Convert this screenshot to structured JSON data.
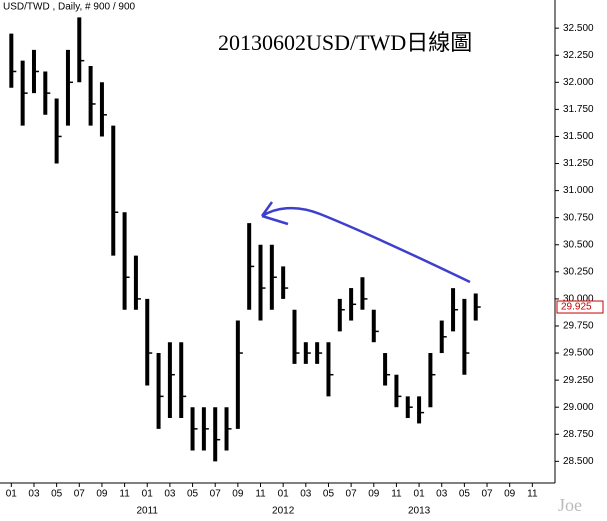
{
  "chart_data": {
    "type": "hilo",
    "header": "USD/TWD , Daily, # 900 / 900",
    "title": "20130602USD/TWD日線圖",
    "watermark": "Joe",
    "color": "#000000",
    "x": [
      "2010-01",
      "2010-02",
      "2010-03",
      "2010-04",
      "2010-05",
      "2010-06",
      "2010-07",
      "2010-08",
      "2010-09",
      "2010-10",
      "2010-11",
      "2010-12",
      "2011-01",
      "2011-02",
      "2011-03",
      "2011-04",
      "2011-05",
      "2011-06",
      "2011-07",
      "2011-08",
      "2011-09",
      "2011-10",
      "2011-11",
      "2011-12",
      "2012-01",
      "2012-02",
      "2012-03",
      "2012-04",
      "2012-05",
      "2012-06",
      "2012-07",
      "2012-08",
      "2012-09",
      "2012-10",
      "2012-11",
      "2012-12",
      "2013-01",
      "2013-02",
      "2013-03",
      "2013-04",
      "2013-05",
      "2013-06"
    ],
    "low": [
      31.95,
      31.6,
      31.9,
      31.7,
      31.25,
      31.6,
      32.0,
      31.6,
      31.5,
      30.4,
      29.9,
      29.9,
      29.2,
      28.8,
      28.9,
      28.9,
      28.6,
      28.6,
      28.5,
      28.6,
      28.8,
      29.9,
      29.8,
      29.9,
      30.0,
      29.4,
      29.4,
      29.4,
      29.1,
      29.7,
      29.8,
      29.9,
      29.6,
      29.2,
      29.0,
      28.9,
      28.85,
      29.0,
      29.5,
      29.7,
      29.3,
      29.8
    ],
    "high": [
      32.45,
      32.2,
      32.3,
      32.1,
      31.85,
      32.3,
      32.6,
      32.15,
      32.0,
      31.6,
      30.8,
      30.4,
      30.0,
      29.5,
      29.6,
      29.6,
      29.0,
      29.0,
      29.0,
      29.0,
      29.8,
      30.7,
      30.5,
      30.5,
      30.3,
      29.9,
      29.6,
      29.6,
      29.6,
      30.0,
      30.1,
      30.2,
      29.9,
      29.5,
      29.3,
      29.1,
      29.1,
      29.5,
      29.8,
      30.1,
      30.0,
      30.05
    ],
    "close": [
      32.1,
      31.9,
      32.1,
      31.9,
      31.5,
      32.0,
      32.2,
      31.8,
      31.7,
      30.8,
      30.2,
      30.0,
      29.5,
      29.1,
      29.3,
      29.1,
      28.8,
      28.8,
      28.7,
      28.8,
      29.5,
      30.3,
      30.1,
      30.2,
      30.1,
      29.5,
      29.5,
      29.5,
      29.3,
      29.9,
      29.95,
      30.0,
      29.7,
      29.3,
      29.1,
      29.0,
      28.95,
      29.3,
      29.65,
      29.9,
      29.5,
      29.925
    ],
    "last_price": 29.925,
    "last_price_color": "#cc0000",
    "xlim": [
      "2009-12",
      "2014-01"
    ],
    "ylim": [
      28.3,
      32.76
    ],
    "yticks": [
      {
        "value": 28.5,
        "label": "28.500"
      },
      {
        "value": 28.75,
        "label": "28.750"
      },
      {
        "value": 29,
        "label": "29.000"
      },
      {
        "value": 29.25,
        "label": "29.250"
      },
      {
        "value": 29.5,
        "label": "29.500"
      },
      {
        "value": 29.75,
        "label": "29.750"
      },
      {
        "value": 30,
        "label": "30.000"
      },
      {
        "value": 30.25,
        "label": "30.250"
      },
      {
        "value": 30.5,
        "label": "30.500"
      },
      {
        "value": 30.75,
        "label": "30.750"
      },
      {
        "value": 31,
        "label": "31.000"
      },
      {
        "value": 31.25,
        "label": "31.250"
      },
      {
        "value": 31.5,
        "label": "31.500"
      },
      {
        "value": 31.75,
        "label": "31.750"
      },
      {
        "value": 32,
        "label": "32.000"
      },
      {
        "value": 32.25,
        "label": "32.250"
      },
      {
        "value": 32.5,
        "label": "32.500"
      }
    ],
    "xticks": [
      {
        "value": "2010-01",
        "label": "01"
      },
      {
        "value": "2010-03",
        "label": "03"
      },
      {
        "value": "2010-05",
        "label": "05"
      },
      {
        "value": "2010-07",
        "label": "07"
      },
      {
        "value": "2010-09",
        "label": "09"
      },
      {
        "value": "2010-11",
        "label": "11"
      },
      {
        "value": "2011-01",
        "label": "01"
      },
      {
        "value": "2011-03",
        "label": "03"
      },
      {
        "value": "2011-05",
        "label": "05"
      },
      {
        "value": "2011-07",
        "label": "07"
      },
      {
        "value": "2011-09",
        "label": "09"
      },
      {
        "value": "2011-11",
        "label": "11"
      },
      {
        "value": "2012-01",
        "label": "01"
      },
      {
        "value": "2012-03",
        "label": "03"
      },
      {
        "value": "2012-05",
        "label": "05"
      },
      {
        "value": "2012-07",
        "label": "07"
      },
      {
        "value": "2012-09",
        "label": "09"
      },
      {
        "value": "2012-11",
        "label": "11"
      },
      {
        "value": "2013-01",
        "label": "01"
      },
      {
        "value": "2013-03",
        "label": "03"
      },
      {
        "value": "2013-05",
        "label": "05"
      },
      {
        "value": "2013-07",
        "label": "07"
      },
      {
        "value": "2013-09",
        "label": "09"
      },
      {
        "value": "2013-11",
        "label": "11"
      }
    ],
    "year_ticks": [
      {
        "value": "2011-01",
        "label": "2011"
      },
      {
        "value": "2012-01",
        "label": "2012"
      },
      {
        "value": "2013-01",
        "label": "2013"
      }
    ]
  }
}
